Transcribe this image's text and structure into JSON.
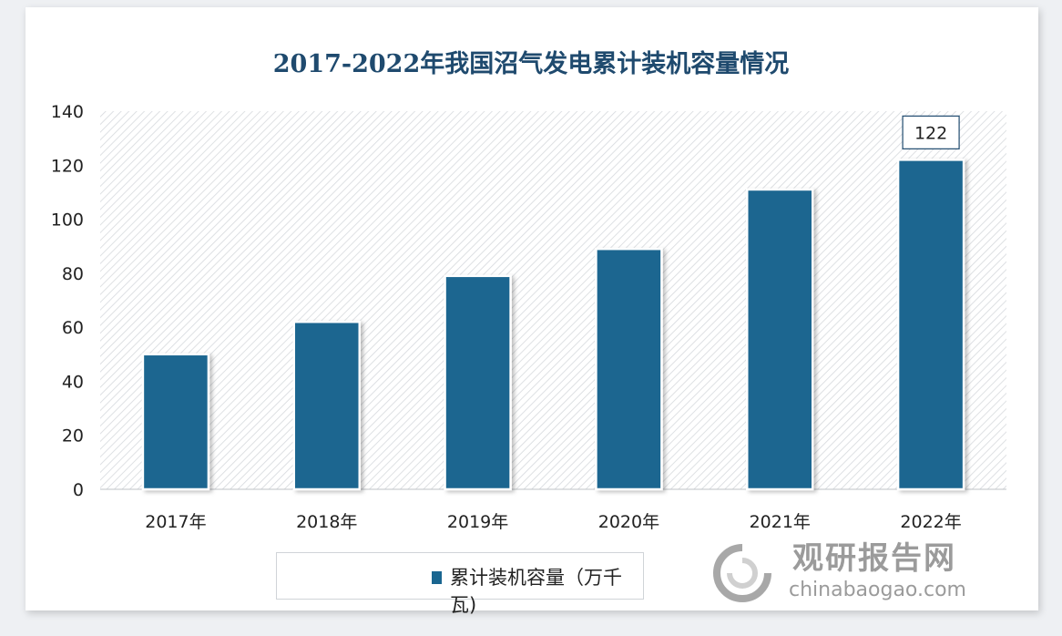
{
  "chart_data": {
    "type": "bar",
    "title": "2017-2022年我国沼气发电累计装机容量情况",
    "categories": [
      "2017年",
      "2018年",
      "2019年",
      "2020年",
      "2021年",
      "2022年"
    ],
    "series": [
      {
        "name": "累计装机容量（万千瓦)",
        "values": [
          50,
          62,
          79,
          89,
          111,
          122
        ]
      }
    ],
    "data_labels": [
      {
        "category": "2022年",
        "text": "122"
      }
    ],
    "yticks": [
      "0",
      "20",
      "40",
      "60",
      "80",
      "100",
      "120",
      "140"
    ],
    "ylim": [
      0,
      140
    ],
    "xlabel": "",
    "ylabel": "",
    "legend": "bottom",
    "colors": {
      "bar": "#1a6690",
      "title": "#1f4a6e"
    }
  },
  "watermark": {
    "cn": "观研报告网",
    "en": "chinabaogao.com"
  }
}
